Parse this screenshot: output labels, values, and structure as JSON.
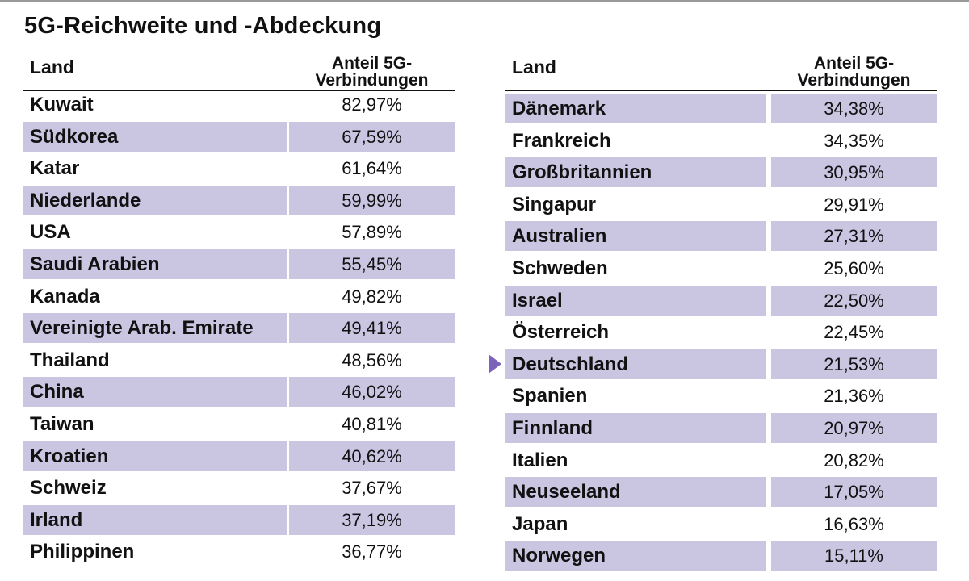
{
  "title": "5G-Reichweite und -Abdeckung",
  "colors": {
    "row_shade": "#cac6e2",
    "accent": "#7a63b8",
    "text": "#111111"
  },
  "tables": [
    {
      "header": {
        "land": "Land",
        "value_line1": "Anteil 5G-",
        "value_line2": "Verbindungen"
      },
      "rows": [
        {
          "land": "Kuwait",
          "value": "82,97%",
          "shaded": false
        },
        {
          "land": "Südkorea",
          "value": "67,59%",
          "shaded": true
        },
        {
          "land": "Katar",
          "value": "61,64%",
          "shaded": false
        },
        {
          "land": "Niederlande",
          "value": "59,99%",
          "shaded": true
        },
        {
          "land": "USA",
          "value": "57,89%",
          "shaded": false
        },
        {
          "land": "Saudi Arabien",
          "value": "55,45%",
          "shaded": true
        },
        {
          "land": "Kanada",
          "value": "49,82%",
          "shaded": false
        },
        {
          "land": "Vereinigte Arab. Emirate",
          "value": "49,41%",
          "shaded": true
        },
        {
          "land": "Thailand",
          "value": "48,56%",
          "shaded": false
        },
        {
          "land": "China",
          "value": "46,02%",
          "shaded": true
        },
        {
          "land": "Taiwan",
          "value": "40,81%",
          "shaded": false
        },
        {
          "land": "Kroatien",
          "value": "40,62%",
          "shaded": true
        },
        {
          "land": "Schweiz",
          "value": "37,67%",
          "shaded": false
        },
        {
          "land": "Irland",
          "value": "37,19%",
          "shaded": true
        },
        {
          "land": "Philippinen",
          "value": "36,77%",
          "shaded": false
        }
      ]
    },
    {
      "header": {
        "land": "Land",
        "value_line1": "Anteil 5G-",
        "value_line2": "Verbindungen"
      },
      "rows": [
        {
          "land": "Dänemark",
          "value": "34,38%",
          "shaded": true
        },
        {
          "land": "Frankreich",
          "value": "34,35%",
          "shaded": false
        },
        {
          "land": "Großbritannien",
          "value": "30,95%",
          "shaded": true
        },
        {
          "land": "Singapur",
          "value": "29,91%",
          "shaded": false
        },
        {
          "land": "Australien",
          "value": "27,31%",
          "shaded": true
        },
        {
          "land": "Schweden",
          "value": "25,60%",
          "shaded": false
        },
        {
          "land": "Israel",
          "value": "22,50%",
          "shaded": true
        },
        {
          "land": "Österreich",
          "value": "22,45%",
          "shaded": false
        },
        {
          "land": "Deutschland",
          "value": "21,53%",
          "shaded": true,
          "highlighted": true
        },
        {
          "land": "Spanien",
          "value": "21,36%",
          "shaded": false
        },
        {
          "land": "Finnland",
          "value": "20,97%",
          "shaded": true
        },
        {
          "land": "Italien",
          "value": "20,82%",
          "shaded": false
        },
        {
          "land": "Neuseeland",
          "value": "17,05%",
          "shaded": true
        },
        {
          "land": "Japan",
          "value": "16,63%",
          "shaded": false
        },
        {
          "land": "Norwegen",
          "value": "15,11%",
          "shaded": true
        }
      ]
    }
  ],
  "pointer_icon": "triangle-right-icon"
}
